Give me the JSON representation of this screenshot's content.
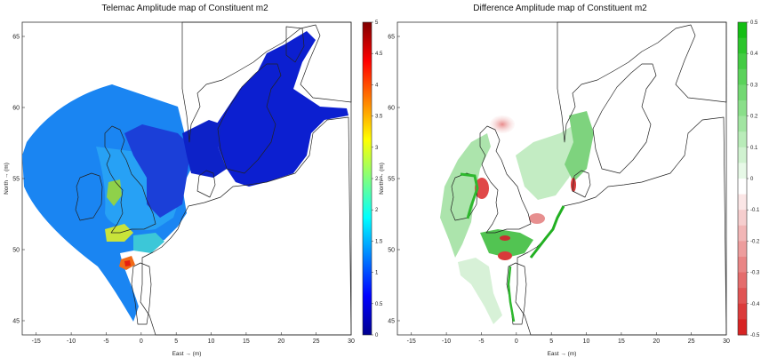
{
  "chart_data": [
    {
      "type": "heatmap",
      "title": "Telemac Amplitude map of Constituent m2",
      "xlabel": "East → (m)",
      "ylabel": "North → (m)",
      "xlim": [
        -17,
        30
      ],
      "ylim": [
        44,
        66
      ],
      "xticks": [
        -15,
        -10,
        -5,
        0,
        5,
        10,
        15,
        20,
        25,
        30
      ],
      "yticks": [
        45,
        50,
        55,
        60,
        65
      ],
      "colorbar": {
        "min": 0,
        "max": 5,
        "ticks": [
          0,
          0.5,
          1,
          1.5,
          2,
          2.5,
          3,
          3.5,
          4,
          4.5,
          5
        ],
        "tick_labels": [
          "0",
          "0.5",
          "1",
          "1.5",
          "2",
          "2.5",
          "3",
          "3.5",
          "4",
          "4.5",
          "5"
        ],
        "colormap": "jet"
      },
      "grid": false
    },
    {
      "type": "heatmap",
      "title": "Difference Amplitude map of Constituent m2",
      "xlabel": "East → (m)",
      "ylabel": "North → (m)",
      "xlim": [
        -17,
        30
      ],
      "ylim": [
        44,
        66
      ],
      "xticks": [
        -15,
        -10,
        -5,
        0,
        5,
        10,
        15,
        20,
        25,
        30
      ],
      "yticks": [
        45,
        50,
        55,
        60,
        65
      ],
      "colorbar": {
        "min": -0.5,
        "max": 0.5,
        "ticks": [
          0.5,
          0.4,
          0.3,
          0.2,
          0.1,
          0,
          -0.1,
          -0.2,
          -0.3,
          -0.4,
          -0.5
        ],
        "tick_labels": [
          "0.5",
          "0.4",
          "0.3",
          "0.2",
          "0.1",
          "0",
          "-0.1",
          "-0.2",
          "-0.3",
          "-0.4",
          "-0.5"
        ],
        "colormap": "red-white-green"
      },
      "grid": false
    }
  ]
}
